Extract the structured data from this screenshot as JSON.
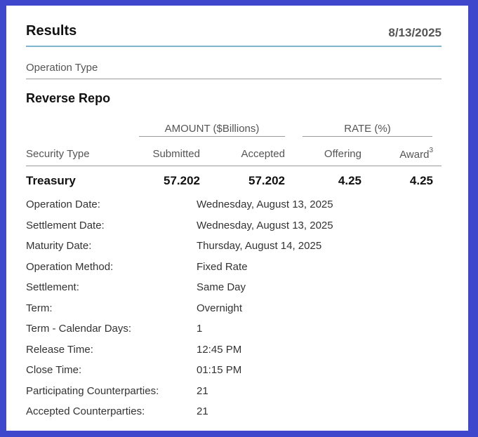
{
  "header": {
    "title": "Results",
    "date": "8/13/2025"
  },
  "operation_type_label": "Operation Type",
  "section_title": "Reverse Repo",
  "group_headers": {
    "amount": "AMOUNT ($Billions)",
    "rate": "RATE (%)"
  },
  "columns": {
    "security_type": "Security Type",
    "submitted": "Submitted",
    "accepted": "Accepted",
    "offering": "Offering",
    "award": "Award",
    "award_footnote": "3"
  },
  "row": {
    "security_type": "Treasury",
    "submitted": "57.202",
    "accepted": "57.202",
    "offering": "4.25",
    "award": "4.25"
  },
  "details": [
    {
      "label": "Operation Date:",
      "value": "Wednesday, August 13, 2025"
    },
    {
      "label": "Settlement Date:",
      "value": "Wednesday, August 13, 2025"
    },
    {
      "label": "Maturity Date:",
      "value": "Thursday, August 14, 2025"
    },
    {
      "label": "Operation Method:",
      "value": "Fixed Rate"
    },
    {
      "label": "Settlement:",
      "value": "Same Day"
    },
    {
      "label": "Term:",
      "value": "Overnight"
    },
    {
      "label": "Term - Calendar Days:",
      "value": "1"
    },
    {
      "label": "Release Time:",
      "value": "12:45 PM"
    },
    {
      "label": "Close Time:",
      "value": "01:15 PM"
    },
    {
      "label": "Participating Counterparties:",
      "value": "21"
    },
    {
      "label": "Accepted Counterparties:",
      "value": "21"
    }
  ],
  "colors": {
    "frame": "#3f48cc",
    "accent_rule": "#7fb5cc"
  }
}
